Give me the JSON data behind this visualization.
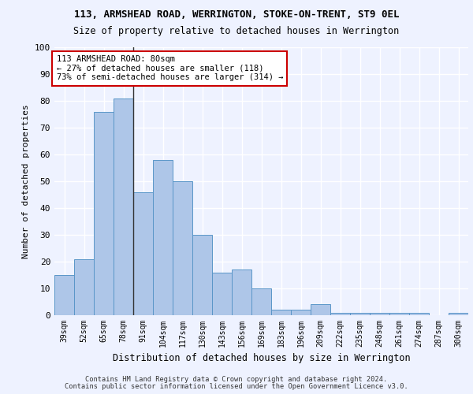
{
  "title1": "113, ARMSHEAD ROAD, WERRINGTON, STOKE-ON-TRENT, ST9 0EL",
  "title2": "Size of property relative to detached houses in Werrington",
  "xlabel": "Distribution of detached houses by size in Werrington",
  "ylabel": "Number of detached properties",
  "categories": [
    "39sqm",
    "52sqm",
    "65sqm",
    "78sqm",
    "91sqm",
    "104sqm",
    "117sqm",
    "130sqm",
    "143sqm",
    "156sqm",
    "169sqm",
    "183sqm",
    "196sqm",
    "209sqm",
    "222sqm",
    "235sqm",
    "248sqm",
    "261sqm",
    "274sqm",
    "287sqm",
    "300sqm"
  ],
  "values": [
    15,
    21,
    76,
    81,
    46,
    58,
    50,
    30,
    16,
    17,
    10,
    2,
    2,
    4,
    1,
    1,
    1,
    1,
    1,
    0,
    1
  ],
  "bar_color": "#aec6e8",
  "bar_edge_color": "#5a96c8",
  "annotation_text": "113 ARMSHEAD ROAD: 80sqm\n← 27% of detached houses are smaller (118)\n73% of semi-detached houses are larger (314) →",
  "annotation_box_color": "#ffffff",
  "annotation_box_edge_color": "#cc0000",
  "footnote1": "Contains HM Land Registry data © Crown copyright and database right 2024.",
  "footnote2": "Contains public sector information licensed under the Open Government Licence v3.0.",
  "ylim": [
    0,
    100
  ],
  "bg_color": "#eef2ff",
  "grid_color": "#ffffff",
  "vline_x": 3.5
}
